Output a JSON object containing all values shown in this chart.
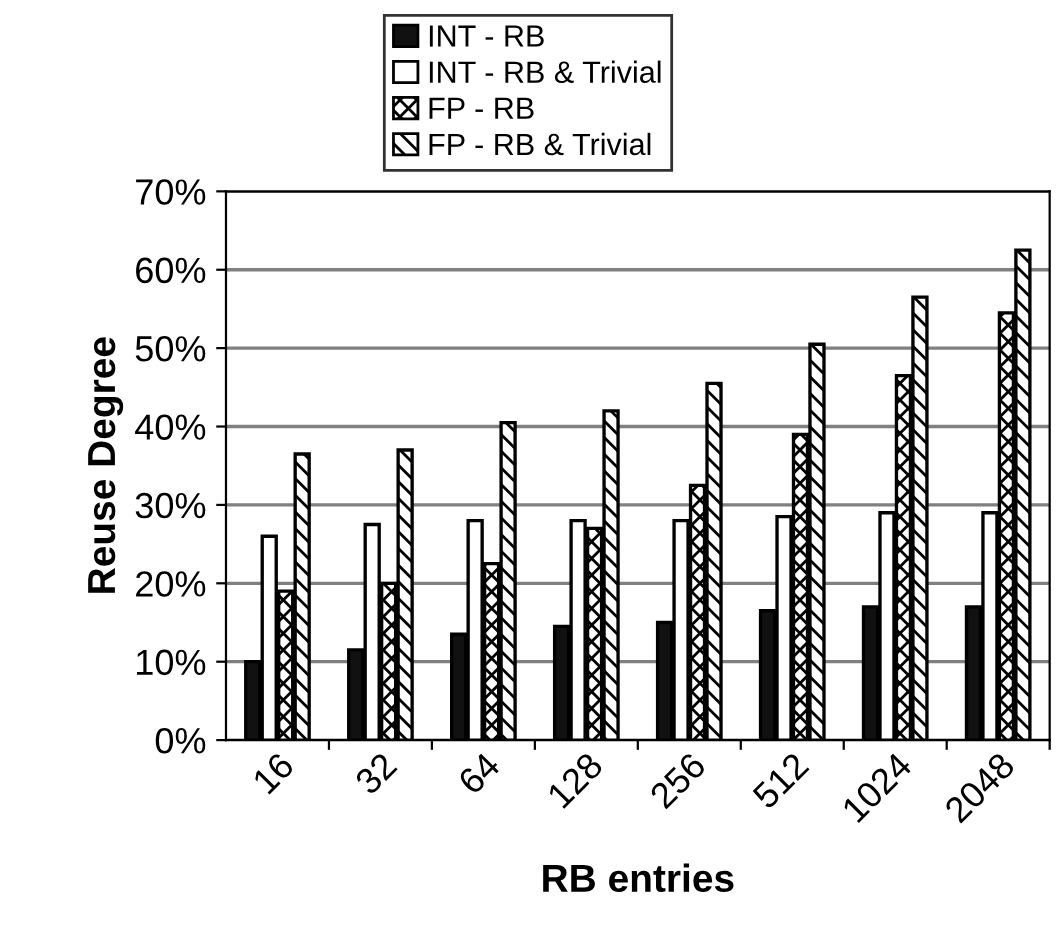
{
  "chart_data": {
    "type": "bar",
    "xlabel": "RB entries",
    "ylabel": "Reuse Degree",
    "categories": [
      "16",
      "32",
      "64",
      "128",
      "256",
      "512",
      "1024",
      "2048"
    ],
    "series": [
      {
        "name": "INT - RB",
        "color": "#111111",
        "values": [
          10,
          11.5,
          13.5,
          14.5,
          15,
          16.5,
          17,
          17
        ]
      },
      {
        "name": "INT - RB & Trivial",
        "color": "#ffffff",
        "values": [
          26,
          27.5,
          28,
          28,
          28,
          28.5,
          29,
          29
        ]
      },
      {
        "name": "FP - RB",
        "color": "#000000",
        "values": [
          19,
          20,
          22.5,
          27,
          32.5,
          39,
          46.5,
          54.5
        ]
      },
      {
        "name": "FP - RB & Trivial",
        "color": "#000000",
        "values": [
          36.5,
          37,
          40.5,
          42,
          45.5,
          50.5,
          56.5,
          62.5
        ]
      }
    ],
    "ylim": [
      0,
      70
    ],
    "yticks": [
      {
        "value": 0,
        "label": "0%"
      },
      {
        "value": 10,
        "label": "10%"
      },
      {
        "value": 20,
        "label": "20%"
      },
      {
        "value": 30,
        "label": "30%"
      },
      {
        "value": 40,
        "label": "40%"
      },
      {
        "value": 50,
        "label": "50%"
      },
      {
        "value": 60,
        "label": "60%"
      },
      {
        "value": 70,
        "label": "70%"
      }
    ],
    "grid": "y",
    "legend": "top"
  }
}
